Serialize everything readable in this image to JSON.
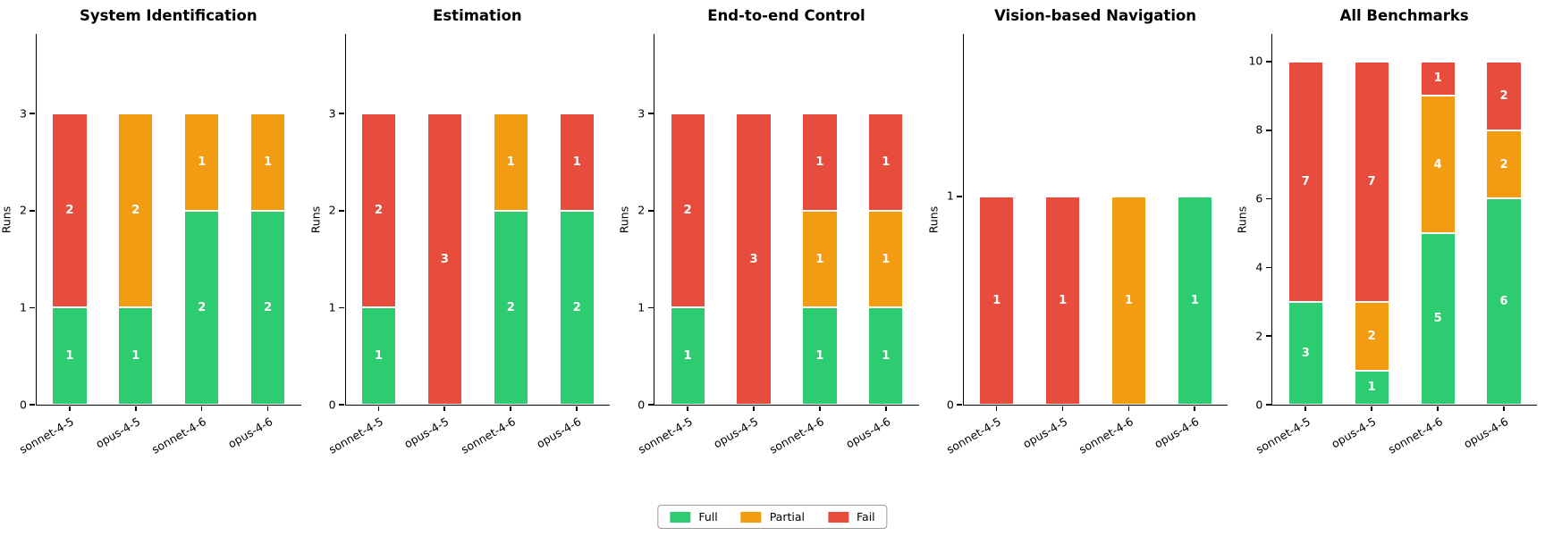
{
  "chart_data": [
    {
      "type": "bar",
      "stacked": true,
      "title": "System Identification",
      "ylabel": "Runs",
      "categories": [
        "sonnet-4-5",
        "opus-4-5",
        "sonnet-4-6",
        "opus-4-6"
      ],
      "series": [
        {
          "name": "Full",
          "values": [
            1,
            1,
            2,
            2
          ]
        },
        {
          "name": "Partial",
          "values": [
            0,
            2,
            1,
            1
          ]
        },
        {
          "name": "Fail",
          "values": [
            2,
            0,
            0,
            0
          ]
        }
      ],
      "yticks": [
        0,
        1,
        2,
        3
      ],
      "ylim": [
        0,
        3.82
      ],
      "grid": false
    },
    {
      "type": "bar",
      "stacked": true,
      "title": "Estimation",
      "ylabel": "Runs",
      "categories": [
        "sonnet-4-5",
        "opus-4-5",
        "sonnet-4-6",
        "opus-4-6"
      ],
      "series": [
        {
          "name": "Full",
          "values": [
            1,
            0,
            2,
            2
          ]
        },
        {
          "name": "Partial",
          "values": [
            0,
            0,
            1,
            0
          ]
        },
        {
          "name": "Fail",
          "values": [
            2,
            3,
            0,
            1
          ]
        }
      ],
      "yticks": [
        0,
        1,
        2,
        3
      ],
      "ylim": [
        0,
        3.82
      ],
      "grid": false
    },
    {
      "type": "bar",
      "stacked": true,
      "title": "End-to-end Control",
      "ylabel": "Runs",
      "categories": [
        "sonnet-4-5",
        "opus-4-5",
        "sonnet-4-6",
        "opus-4-6"
      ],
      "series": [
        {
          "name": "Full",
          "values": [
            1,
            0,
            1,
            1
          ]
        },
        {
          "name": "Partial",
          "values": [
            0,
            0,
            1,
            1
          ]
        },
        {
          "name": "Fail",
          "values": [
            2,
            3,
            1,
            1
          ]
        }
      ],
      "yticks": [
        0,
        1,
        2,
        3
      ],
      "ylim": [
        0,
        3.82
      ],
      "grid": false
    },
    {
      "type": "bar",
      "stacked": true,
      "title": "Vision-based Navigation",
      "ylabel": "Runs",
      "categories": [
        "sonnet-4-5",
        "opus-4-5",
        "sonnet-4-6",
        "opus-4-6"
      ],
      "series": [
        {
          "name": "Full",
          "values": [
            0,
            0,
            0,
            1
          ]
        },
        {
          "name": "Partial",
          "values": [
            0,
            0,
            1,
            0
          ]
        },
        {
          "name": "Fail",
          "values": [
            1,
            1,
            0,
            0
          ]
        }
      ],
      "yticks": [
        0,
        1
      ],
      "ylim": [
        0,
        1.78
      ],
      "grid": false
    },
    {
      "type": "bar",
      "stacked": true,
      "title": "All Benchmarks",
      "ylabel": "Runs",
      "categories": [
        "sonnet-4-5",
        "opus-4-5",
        "sonnet-4-6",
        "opus-4-6"
      ],
      "series": [
        {
          "name": "Full",
          "values": [
            3,
            1,
            5,
            6
          ]
        },
        {
          "name": "Partial",
          "values": [
            0,
            2,
            4,
            2
          ]
        },
        {
          "name": "Fail",
          "values": [
            7,
            7,
            1,
            2
          ]
        }
      ],
      "yticks": [
        0,
        2,
        4,
        6,
        8,
        10
      ],
      "ylim": [
        0,
        10.8
      ],
      "grid": false
    }
  ],
  "legend": {
    "position": "bottom-center",
    "items": [
      {
        "label": "Full",
        "color": "#2ecc71"
      },
      {
        "label": "Partial",
        "color": "#f39c12"
      },
      {
        "label": "Fail",
        "color": "#e74c3c"
      }
    ]
  }
}
